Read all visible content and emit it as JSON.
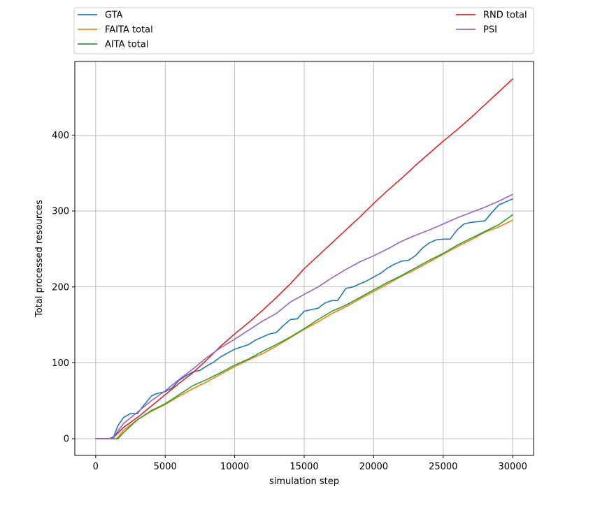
{
  "chart_data": {
    "type": "line",
    "xlabel": "simulation step",
    "ylabel": "Total processed resources",
    "xlim": [
      -1500,
      31500
    ],
    "ylim": [
      -22,
      497
    ],
    "xticks": [
      0,
      5000,
      10000,
      15000,
      20000,
      25000,
      30000
    ],
    "xtick_labels": [
      "0",
      "5000",
      "10000",
      "15000",
      "20000",
      "25000",
      "30000"
    ],
    "yticks": [
      0,
      100,
      200,
      300,
      400
    ],
    "ytick_labels": [
      "0",
      "100",
      "200",
      "300",
      "400"
    ],
    "grid": true,
    "legend_position": "top, above plot, two columns",
    "series": [
      {
        "name": "GTA",
        "color": "#1f77b4",
        "x": [
          0,
          1000,
          1300,
          1600,
          2000,
          2500,
          3000,
          3500,
          4000,
          4300,
          5000,
          5500,
          6000,
          6500,
          7000,
          7500,
          8000,
          8500,
          9000,
          9500,
          10000,
          10500,
          11000,
          11500,
          12000,
          12500,
          13000,
          13500,
          14000,
          14500,
          15000,
          15500,
          16000,
          16500,
          17000,
          17400,
          17700,
          18000,
          18500,
          19000,
          19500,
          20000,
          20500,
          21000,
          21500,
          22000,
          22500,
          23000,
          23500,
          24000,
          24500,
          25000,
          25500,
          26000,
          26500,
          27000,
          27500,
          28000,
          28500,
          29000,
          29500,
          30000
        ],
        "values": [
          0,
          0,
          3,
          17,
          28,
          33,
          33,
          45,
          56,
          59,
          62,
          67,
          77,
          83,
          88,
          90,
          96,
          101,
          108,
          113,
          118,
          121,
          124,
          130,
          134,
          138,
          140,
          149,
          157,
          158,
          168,
          170,
          172,
          179,
          182,
          182,
          190,
          198,
          200,
          204,
          208,
          213,
          218,
          225,
          230,
          234,
          235,
          241,
          251,
          258,
          262,
          263,
          263,
          275,
          283,
          285,
          286,
          287,
          298,
          308,
          312,
          316
        ]
      },
      {
        "name": "FAITA total",
        "color": "#ff7f0e",
        "x": [
          0,
          1500,
          2000,
          3000,
          4000,
          5000,
          6000,
          7000,
          8000,
          9000,
          10000,
          11000,
          12000,
          13000,
          14000,
          15000,
          16000,
          17000,
          18000,
          19000,
          20000,
          21000,
          22000,
          23000,
          24000,
          25000,
          26000,
          27000,
          28000,
          29000,
          30000
        ],
        "values": [
          0,
          0,
          11,
          25,
          36,
          45,
          56,
          66,
          75,
          85,
          95,
          104,
          112,
          122,
          133,
          144,
          154,
          165,
          174,
          184,
          194,
          204,
          214,
          223,
          233,
          243,
          253,
          262,
          272,
          279,
          288
        ]
      },
      {
        "name": "AITA total",
        "color": "#2ca02c",
        "x": [
          0,
          1600,
          2000,
          3000,
          4000,
          5000,
          6000,
          7000,
          8000,
          9000,
          10000,
          11000,
          12000,
          13000,
          14000,
          15000,
          16000,
          17000,
          18000,
          19000,
          20000,
          21000,
          22000,
          23000,
          24000,
          25000,
          26000,
          27000,
          28000,
          29000,
          30000
        ],
        "values": [
          0,
          0,
          8,
          25,
          37,
          46,
          58,
          70,
          78,
          87,
          97,
          105,
          115,
          124,
          134,
          145,
          157,
          168,
          176,
          186,
          196,
          206,
          215,
          225,
          235,
          244,
          255,
          264,
          273,
          282,
          295
        ]
      },
      {
        "name": "RND total",
        "color": "#d62728",
        "x": [
          0,
          1200,
          2000,
          3000,
          4000,
          5000,
          6000,
          7000,
          8000,
          9000,
          10000,
          11000,
          12000,
          13000,
          14000,
          15000,
          16000,
          17000,
          18000,
          19000,
          20000,
          21000,
          22000,
          23000,
          24000,
          25000,
          26000,
          27000,
          28000,
          29000,
          30000
        ],
        "values": [
          0,
          0,
          15,
          28,
          43,
          58,
          73,
          87,
          104,
          122,
          138,
          153,
          169,
          186,
          204,
          224,
          241,
          258,
          275,
          292,
          310,
          327,
          343,
          360,
          376,
          392,
          407,
          423,
          440,
          457,
          474
        ]
      },
      {
        "name": "PSI",
        "color": "#9467bd",
        "x": [
          0,
          1200,
          2000,
          3000,
          4000,
          5000,
          6000,
          7000,
          8000,
          9000,
          10000,
          11000,
          12000,
          13000,
          14000,
          15000,
          16000,
          17000,
          18000,
          19000,
          20000,
          21000,
          22000,
          23000,
          24000,
          25000,
          26000,
          27000,
          28000,
          29000,
          30000
        ],
        "values": [
          0,
          0,
          20,
          35,
          50,
          63,
          78,
          92,
          107,
          120,
          131,
          143,
          155,
          165,
          180,
          190,
          200,
          212,
          223,
          233,
          241,
          250,
          260,
          268,
          275,
          283,
          291,
          298,
          305,
          313,
          322
        ]
      }
    ]
  }
}
